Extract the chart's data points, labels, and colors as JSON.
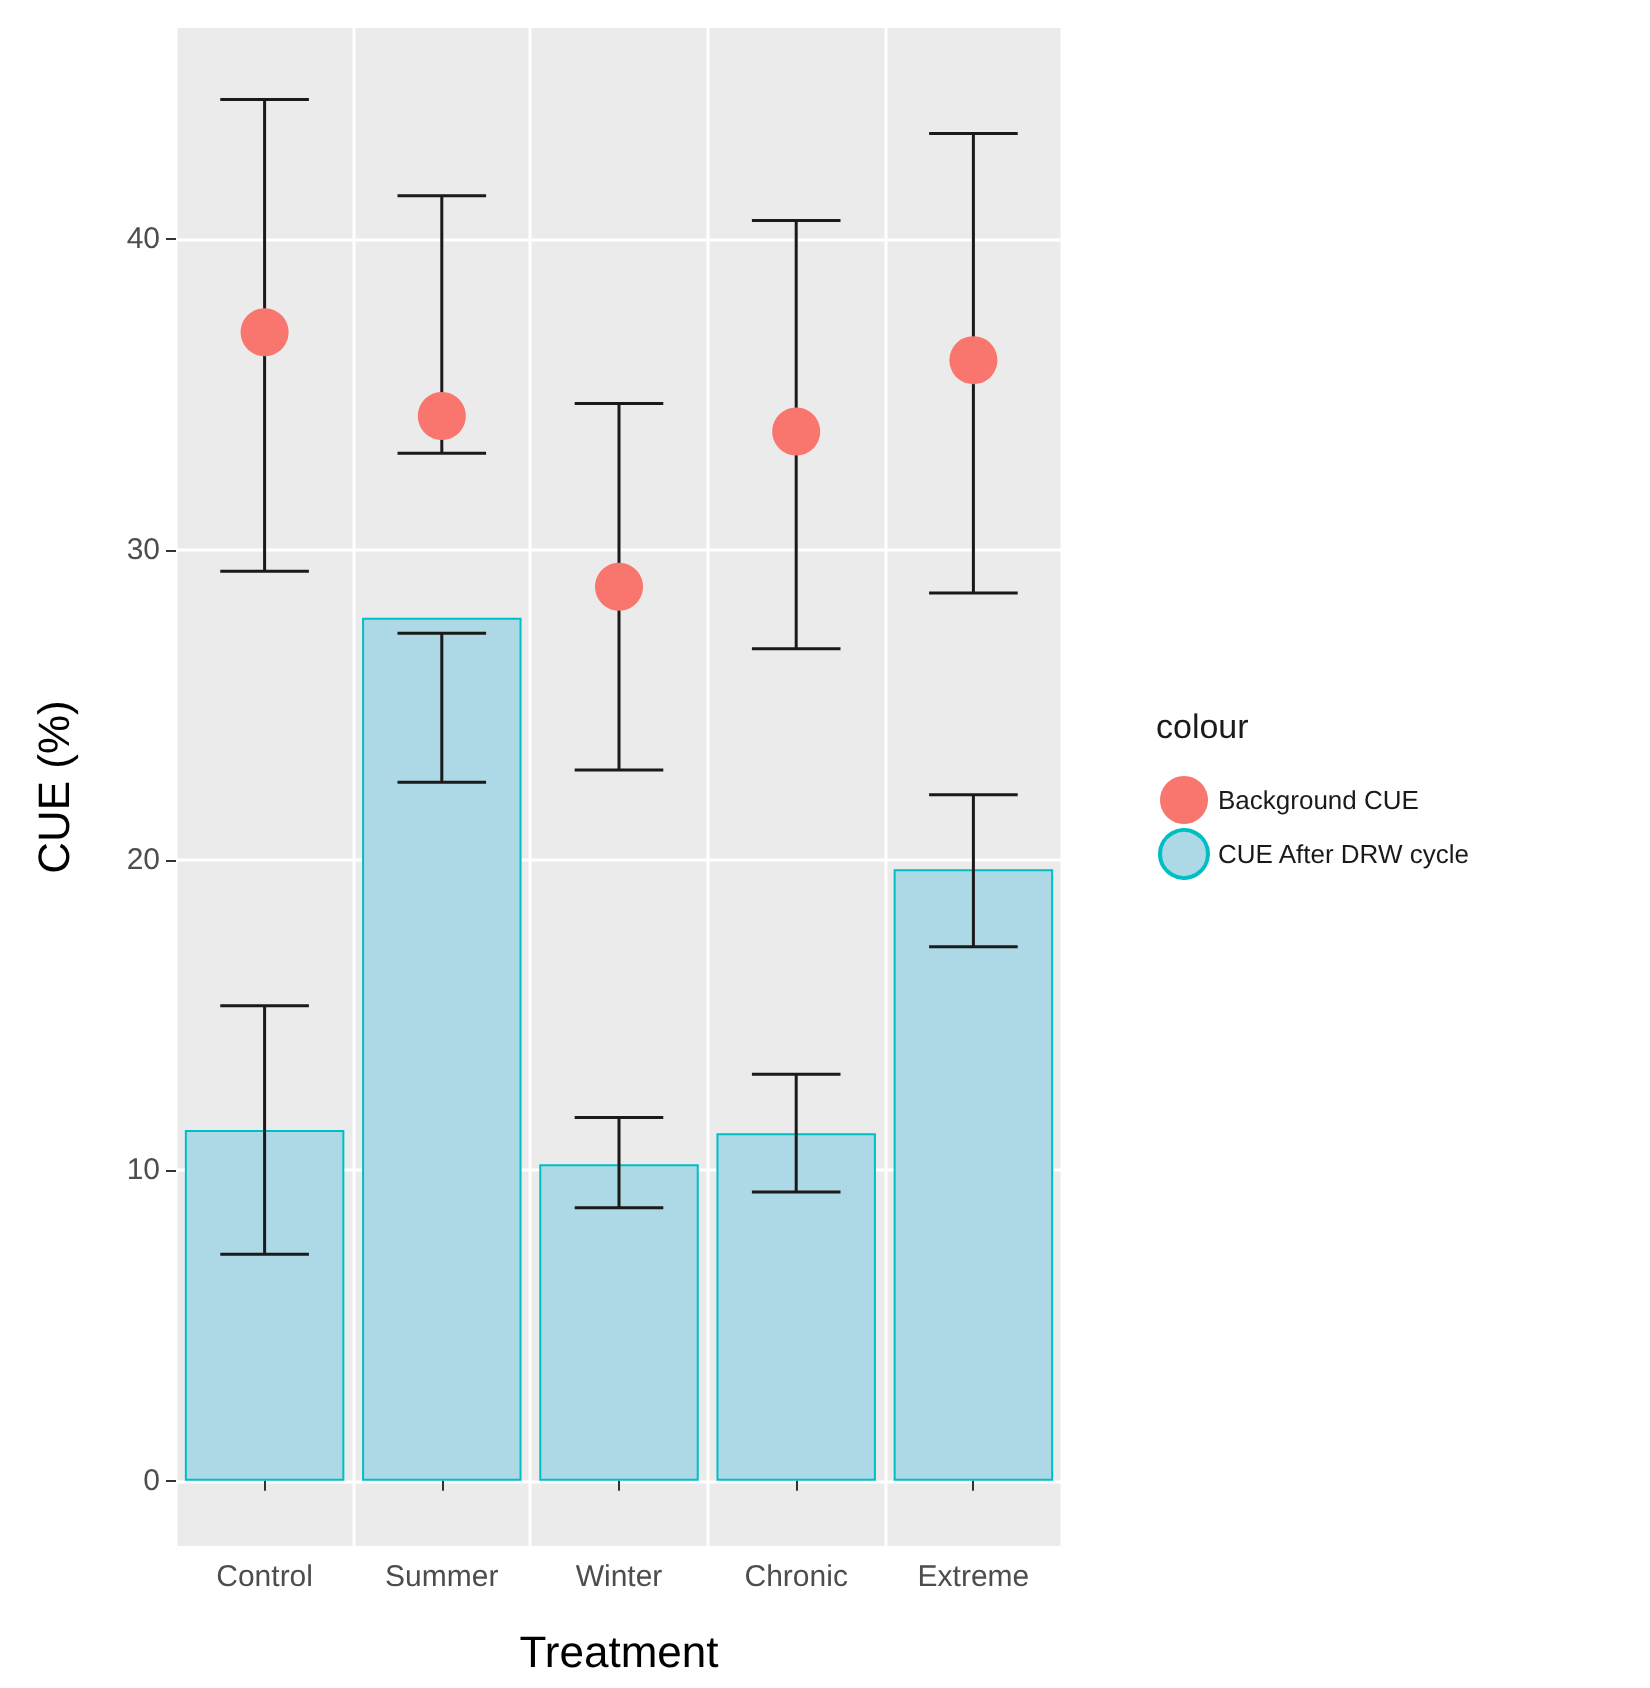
{
  "chart_data": {
    "type": "bar",
    "xlabel": "Treatment",
    "ylabel": "CUE (%)",
    "legend_title": "colour",
    "categories": [
      "Control",
      "Summer",
      "Winter",
      "Chronic",
      "Extreme"
    ],
    "series": [
      {
        "name": "Background CUE",
        "type": "scatter",
        "color": "#f8766d",
        "values": [
          37.0,
          34.3,
          28.8,
          33.8,
          36.1
        ],
        "x": [
          "Control",
          "Summer",
          "Winter",
          "Chronic",
          "Extreme"
        ],
        "errors": [
          [
            29.3,
            44.5
          ],
          [
            33.1,
            41.4
          ],
          [
            22.9,
            34.7
          ],
          [
            26.8,
            40.6
          ],
          [
            28.6,
            43.4
          ]
        ]
      },
      {
        "name": "CUE After DRW cycle",
        "color": "#add8e6",
        "values": [
          11.3,
          27.8,
          10.2,
          11.2,
          19.7
        ],
        "errors": [
          [
            7.3,
            15.3
          ],
          [
            22.5,
            27.3
          ],
          [
            8.8,
            11.7
          ],
          [
            9.3,
            13.1
          ],
          [
            17.2,
            22.1
          ]
        ]
      }
    ],
    "ylim": [
      -2.1,
      46.8
    ],
    "yticks": [
      0,
      10,
      20,
      30,
      40
    ],
    "grid": true,
    "legend": "right",
    "marker": "circle"
  }
}
